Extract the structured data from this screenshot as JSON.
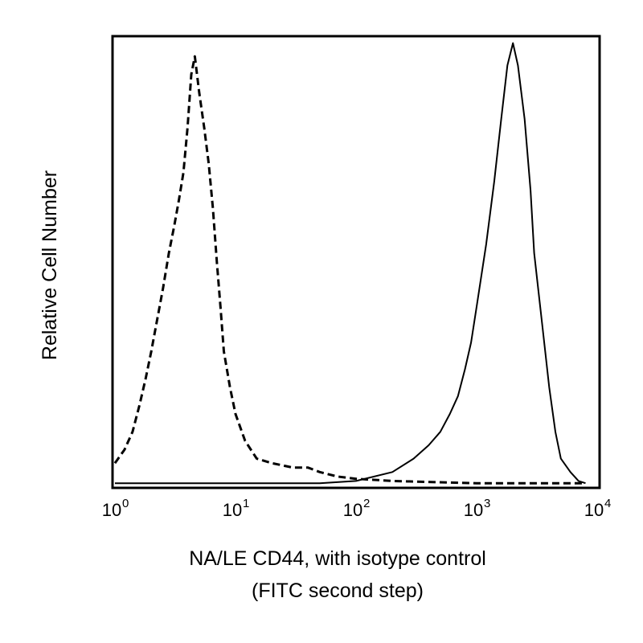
{
  "chart_data": {
    "type": "line",
    "title": "",
    "xlabel": "NA/LE CD44, with isotype control",
    "xlabel_line2": "(FITC second step)",
    "ylabel": "Relative Cell Number",
    "x_scale": "log",
    "xlim": [
      1,
      10000
    ],
    "ylim": [
      0,
      100
    ],
    "grid": false,
    "legend": "none",
    "x_ticks": [
      {
        "base": "10",
        "exp": "0",
        "value": 1
      },
      {
        "base": "10",
        "exp": "1",
        "value": 10
      },
      {
        "base": "10",
        "exp": "2",
        "value": 100
      },
      {
        "base": "10",
        "exp": "3",
        "value": 1000
      },
      {
        "base": "10",
        "exp": "4",
        "value": 10000
      }
    ],
    "series": [
      {
        "style": "dashed",
        "color": "#000000",
        "points": [
          [
            1.0,
            5
          ],
          [
            1.2,
            8
          ],
          [
            1.4,
            12
          ],
          [
            1.6,
            18
          ],
          [
            1.8,
            24
          ],
          [
            2.0,
            30
          ],
          [
            2.2,
            36
          ],
          [
            2.5,
            44
          ],
          [
            2.8,
            52
          ],
          [
            3.1,
            58
          ],
          [
            3.4,
            64
          ],
          [
            3.7,
            70
          ],
          [
            4.0,
            80
          ],
          [
            4.3,
            92
          ],
          [
            4.6,
            96
          ],
          [
            5.0,
            88
          ],
          [
            5.5,
            80
          ],
          [
            6.0,
            72
          ],
          [
            6.5,
            62
          ],
          [
            7.0,
            50
          ],
          [
            7.5,
            40
          ],
          [
            8.0,
            30
          ],
          [
            9.0,
            22
          ],
          [
            10.0,
            16
          ],
          [
            12.0,
            10
          ],
          [
            15.0,
            6
          ],
          [
            20.0,
            5
          ],
          [
            30.0,
            4
          ],
          [
            40.0,
            4
          ],
          [
            50.0,
            3
          ],
          [
            70.0,
            2
          ],
          [
            100.0,
            1.5
          ],
          [
            200.0,
            1
          ],
          [
            1000.0,
            0.5
          ],
          [
            8000.0,
            0.5
          ]
        ]
      },
      {
        "style": "solid",
        "color": "#000000",
        "points": [
          [
            1.0,
            0.5
          ],
          [
            10.0,
            0.5
          ],
          [
            50.0,
            0.5
          ],
          [
            100.0,
            1
          ],
          [
            200.0,
            3
          ],
          [
            300.0,
            6
          ],
          [
            400.0,
            9
          ],
          [
            500.0,
            12
          ],
          [
            600.0,
            16
          ],
          [
            700.0,
            20
          ],
          [
            800.0,
            26
          ],
          [
            900.0,
            32
          ],
          [
            1000.0,
            40
          ],
          [
            1200.0,
            54
          ],
          [
            1400.0,
            68
          ],
          [
            1600.0,
            82
          ],
          [
            1800.0,
            94
          ],
          [
            2000.0,
            99
          ],
          [
            2200.0,
            94
          ],
          [
            2500.0,
            82
          ],
          [
            2800.0,
            66
          ],
          [
            3000.0,
            52
          ],
          [
            3500.0,
            36
          ],
          [
            4000.0,
            22
          ],
          [
            4500.0,
            12
          ],
          [
            5000.0,
            6
          ],
          [
            6000.0,
            3
          ],
          [
            7000.0,
            1
          ],
          [
            8000.0,
            0.5
          ]
        ]
      }
    ]
  }
}
